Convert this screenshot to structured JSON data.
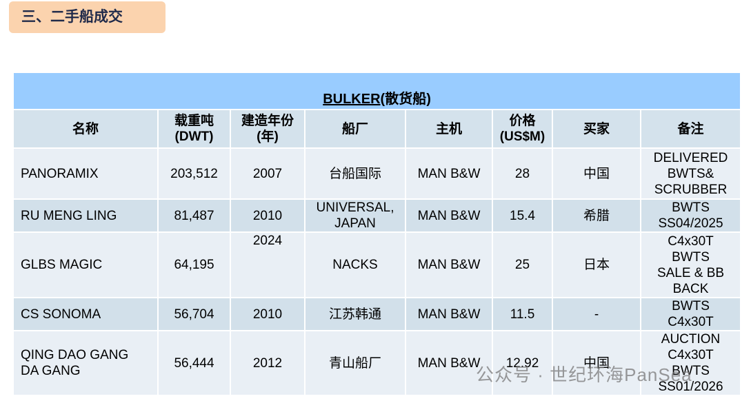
{
  "header": {
    "title": "三、二手船成交"
  },
  "table": {
    "title": "BULKER",
    "title_suffix": "(散货船)",
    "columns": [
      "名称",
      "载重吨\n(DWT)",
      "建造年份\n(年)",
      "船厂",
      "主机",
      "价格\n(US$M)",
      "买家",
      "备注"
    ],
    "rows": [
      [
        "PANORAMIX",
        "203,512",
        "2007",
        "台船国际",
        "MAN B&W",
        "28",
        "中国",
        "DELIVERED\nBWTS&\nSCRUBBER"
      ],
      [
        "RU MENG LING",
        "81,487",
        "2010",
        "UNIVERSAL,\nJAPAN",
        "MAN B&W",
        "15.4",
        "希腊",
        "BWTS\nSS04/2025"
      ],
      [
        "GLBS MAGIC",
        "64,195",
        "2024",
        "NACKS",
        "MAN B&W",
        "25",
        "日本",
        "C4x30T\nBWTS\nSALE & BB\nBACK"
      ],
      [
        "CS SONOMA",
        "56,704",
        "2010",
        "江苏韩通",
        "MAN B&W",
        "11.5",
        "-",
        "BWTS\nC4x30T"
      ],
      [
        "QING DAO GANG\nDA GANG",
        "56,444",
        "2012",
        "青山船厂",
        "MAN B&W",
        "12.92",
        "中国",
        "AUCTION\nC4x30T\nBWTS\nSS01/2026"
      ]
    ]
  },
  "watermark": "公众号 · 世纪环海PanSea"
}
